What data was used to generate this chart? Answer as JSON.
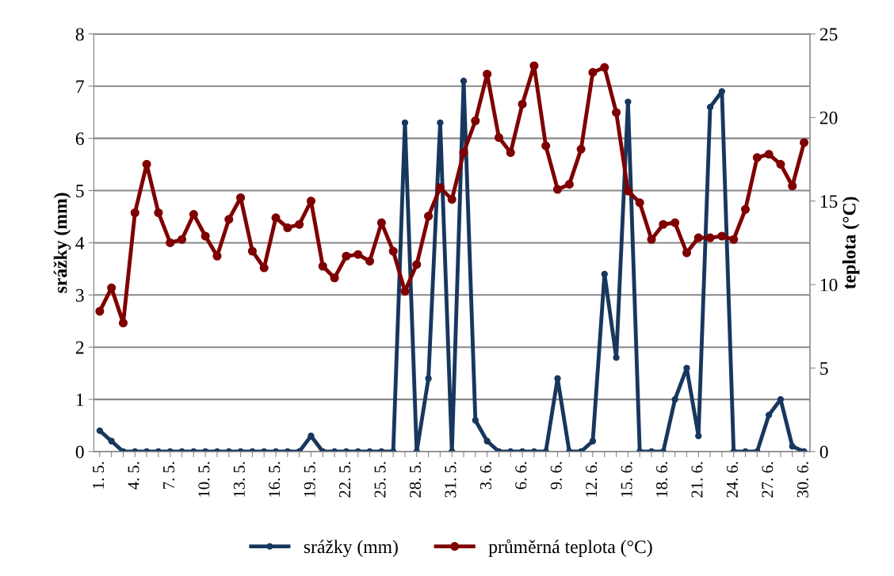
{
  "chart_data": {
    "type": "line",
    "categories": [
      "1. 5.",
      null,
      null,
      "4. 5.",
      null,
      null,
      "7. 5.",
      null,
      null,
      "10. 5.",
      null,
      null,
      "13. 5.",
      null,
      null,
      "16. 5.",
      null,
      null,
      "19. 5.",
      null,
      null,
      "22. 5.",
      null,
      null,
      "25. 5.",
      null,
      null,
      "28. 5.",
      null,
      null,
      "31. 5.",
      null,
      null,
      "3. 6.",
      null,
      null,
      "6. 6.",
      null,
      null,
      "9. 6.",
      null,
      null,
      "12. 6.",
      null,
      null,
      "15. 6.",
      null,
      null,
      "18. 6.",
      null,
      null,
      "21. 6.",
      null,
      null,
      "24. 6.",
      null,
      null,
      "27. 6.",
      null,
      null,
      "30. 6."
    ],
    "ylabel": "srážky (mm)",
    "y2label": "teplota (°C)",
    "ylim": [
      0,
      8
    ],
    "yticks": [
      0,
      1,
      2,
      3,
      4,
      5,
      6,
      7,
      8
    ],
    "y2lim": [
      0,
      25
    ],
    "y2ticks": [
      0,
      5,
      10,
      15,
      20,
      25
    ],
    "grid": "y",
    "legend": "bottom",
    "marker": "circle",
    "line_style": "solid",
    "series": [
      {
        "name": "srážky (mm)",
        "color": "#17375e",
        "values": [
          0.4,
          0.2,
          0,
          0,
          0,
          0,
          0,
          0,
          0,
          0,
          0,
          0,
          0,
          0,
          0,
          0,
          0,
          0,
          0.3,
          0,
          0,
          0,
          0,
          0,
          0,
          0,
          6.3,
          0,
          1.4,
          6.3,
          0,
          7.1,
          0.6,
          0.2,
          0,
          0,
          0,
          0,
          0,
          1.4,
          0,
          0,
          0.2,
          3.4,
          1.8,
          6.7,
          0,
          0,
          0,
          1.0,
          1.6,
          0.3,
          6.6,
          6.9,
          0,
          0,
          0,
          0.7,
          1.0,
          0.1,
          0
        ]
      },
      {
        "name": "průměrná teplota (°C)",
        "color": "#7f0000",
        "axis": "y2",
        "values": [
          8.4,
          9.8,
          7.7,
          14.3,
          17.2,
          14.3,
          12.5,
          12.7,
          14.2,
          12.9,
          11.7,
          13.9,
          15.2,
          12.0,
          11.0,
          14.0,
          13.4,
          13.6,
          15.0,
          11.1,
          10.4,
          11.7,
          11.8,
          11.4,
          13.7,
          12.0,
          9.6,
          11.2,
          14.1,
          15.8,
          15.1,
          17.9,
          19.8,
          22.6,
          18.8,
          17.9,
          20.8,
          23.1,
          18.3,
          15.7,
          16.0,
          18.1,
          22.7,
          23.0,
          20.3,
          15.6,
          14.9,
          12.7,
          13.6,
          13.7,
          11.9,
          12.8,
          12.8,
          12.9,
          12.7,
          14.5,
          17.6,
          17.8,
          17.2,
          15.9,
          18.5
        ]
      }
    ]
  }
}
